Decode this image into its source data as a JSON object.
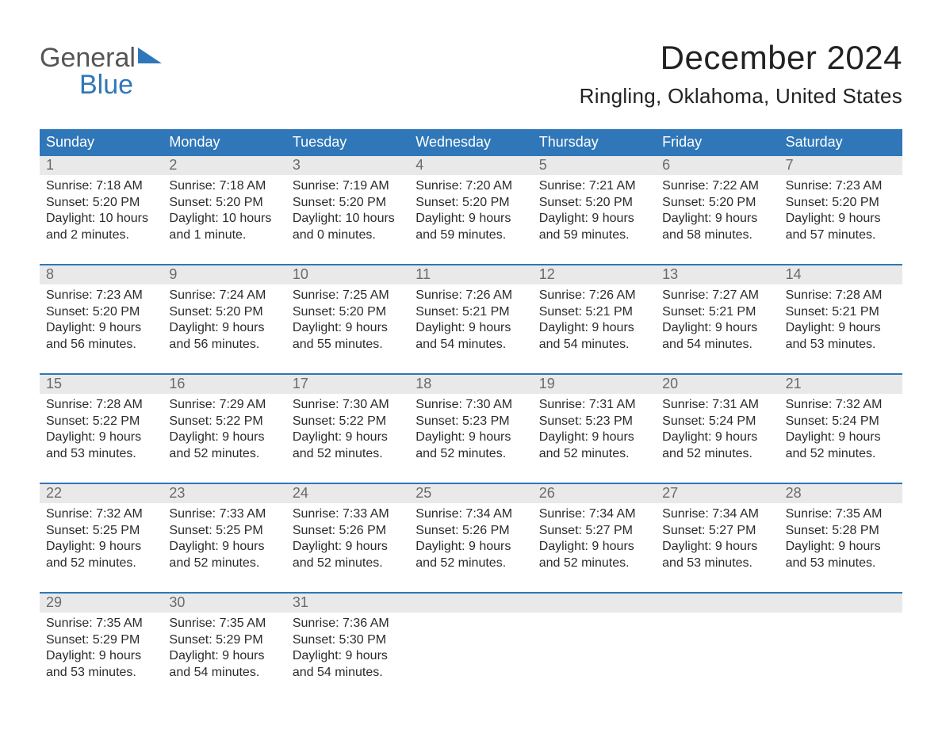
{
  "logo": {
    "word1": "General",
    "word2": "Blue"
  },
  "title": "December 2024",
  "location": "Ringling, Oklahoma, United States",
  "colors": {
    "header_blue": "#2f77b8",
    "daybar_gray": "#e9e9e9",
    "logo_gray": "#555555",
    "logo_blue": "#2f77b8",
    "page_bg": "#ffffff",
    "text_dark": "#2b2b2b",
    "text_muted": "#6a6a6a"
  },
  "weekday_labels": [
    "Sunday",
    "Monday",
    "Tuesday",
    "Wednesday",
    "Thursday",
    "Friday",
    "Saturday"
  ],
  "weeks": [
    [
      {
        "day": 1,
        "sunrise": "7:18 AM",
        "sunset": "5:20 PM",
        "daylight1": "Daylight: 10 hours",
        "daylight2": "and 2 minutes."
      },
      {
        "day": 2,
        "sunrise": "7:18 AM",
        "sunset": "5:20 PM",
        "daylight1": "Daylight: 10 hours",
        "daylight2": "and 1 minute."
      },
      {
        "day": 3,
        "sunrise": "7:19 AM",
        "sunset": "5:20 PM",
        "daylight1": "Daylight: 10 hours",
        "daylight2": "and 0 minutes."
      },
      {
        "day": 4,
        "sunrise": "7:20 AM",
        "sunset": "5:20 PM",
        "daylight1": "Daylight: 9 hours",
        "daylight2": "and 59 minutes."
      },
      {
        "day": 5,
        "sunrise": "7:21 AM",
        "sunset": "5:20 PM",
        "daylight1": "Daylight: 9 hours",
        "daylight2": "and 59 minutes."
      },
      {
        "day": 6,
        "sunrise": "7:22 AM",
        "sunset": "5:20 PM",
        "daylight1": "Daylight: 9 hours",
        "daylight2": "and 58 minutes."
      },
      {
        "day": 7,
        "sunrise": "7:23 AM",
        "sunset": "5:20 PM",
        "daylight1": "Daylight: 9 hours",
        "daylight2": "and 57 minutes."
      }
    ],
    [
      {
        "day": 8,
        "sunrise": "7:23 AM",
        "sunset": "5:20 PM",
        "daylight1": "Daylight: 9 hours",
        "daylight2": "and 56 minutes."
      },
      {
        "day": 9,
        "sunrise": "7:24 AM",
        "sunset": "5:20 PM",
        "daylight1": "Daylight: 9 hours",
        "daylight2": "and 56 minutes."
      },
      {
        "day": 10,
        "sunrise": "7:25 AM",
        "sunset": "5:20 PM",
        "daylight1": "Daylight: 9 hours",
        "daylight2": "and 55 minutes."
      },
      {
        "day": 11,
        "sunrise": "7:26 AM",
        "sunset": "5:21 PM",
        "daylight1": "Daylight: 9 hours",
        "daylight2": "and 54 minutes."
      },
      {
        "day": 12,
        "sunrise": "7:26 AM",
        "sunset": "5:21 PM",
        "daylight1": "Daylight: 9 hours",
        "daylight2": "and 54 minutes."
      },
      {
        "day": 13,
        "sunrise": "7:27 AM",
        "sunset": "5:21 PM",
        "daylight1": "Daylight: 9 hours",
        "daylight2": "and 54 minutes."
      },
      {
        "day": 14,
        "sunrise": "7:28 AM",
        "sunset": "5:21 PM",
        "daylight1": "Daylight: 9 hours",
        "daylight2": "and 53 minutes."
      }
    ],
    [
      {
        "day": 15,
        "sunrise": "7:28 AM",
        "sunset": "5:22 PM",
        "daylight1": "Daylight: 9 hours",
        "daylight2": "and 53 minutes."
      },
      {
        "day": 16,
        "sunrise": "7:29 AM",
        "sunset": "5:22 PM",
        "daylight1": "Daylight: 9 hours",
        "daylight2": "and 52 minutes."
      },
      {
        "day": 17,
        "sunrise": "7:30 AM",
        "sunset": "5:22 PM",
        "daylight1": "Daylight: 9 hours",
        "daylight2": "and 52 minutes."
      },
      {
        "day": 18,
        "sunrise": "7:30 AM",
        "sunset": "5:23 PM",
        "daylight1": "Daylight: 9 hours",
        "daylight2": "and 52 minutes."
      },
      {
        "day": 19,
        "sunrise": "7:31 AM",
        "sunset": "5:23 PM",
        "daylight1": "Daylight: 9 hours",
        "daylight2": "and 52 minutes."
      },
      {
        "day": 20,
        "sunrise": "7:31 AM",
        "sunset": "5:24 PM",
        "daylight1": "Daylight: 9 hours",
        "daylight2": "and 52 minutes."
      },
      {
        "day": 21,
        "sunrise": "7:32 AM",
        "sunset": "5:24 PM",
        "daylight1": "Daylight: 9 hours",
        "daylight2": "and 52 minutes."
      }
    ],
    [
      {
        "day": 22,
        "sunrise": "7:32 AM",
        "sunset": "5:25 PM",
        "daylight1": "Daylight: 9 hours",
        "daylight2": "and 52 minutes."
      },
      {
        "day": 23,
        "sunrise": "7:33 AM",
        "sunset": "5:25 PM",
        "daylight1": "Daylight: 9 hours",
        "daylight2": "and 52 minutes."
      },
      {
        "day": 24,
        "sunrise": "7:33 AM",
        "sunset": "5:26 PM",
        "daylight1": "Daylight: 9 hours",
        "daylight2": "and 52 minutes."
      },
      {
        "day": 25,
        "sunrise": "7:34 AM",
        "sunset": "5:26 PM",
        "daylight1": "Daylight: 9 hours",
        "daylight2": "and 52 minutes."
      },
      {
        "day": 26,
        "sunrise": "7:34 AM",
        "sunset": "5:27 PM",
        "daylight1": "Daylight: 9 hours",
        "daylight2": "and 52 minutes."
      },
      {
        "day": 27,
        "sunrise": "7:34 AM",
        "sunset": "5:27 PM",
        "daylight1": "Daylight: 9 hours",
        "daylight2": "and 53 minutes."
      },
      {
        "day": 28,
        "sunrise": "7:35 AM",
        "sunset": "5:28 PM",
        "daylight1": "Daylight: 9 hours",
        "daylight2": "and 53 minutes."
      }
    ],
    [
      {
        "day": 29,
        "sunrise": "7:35 AM",
        "sunset": "5:29 PM",
        "daylight1": "Daylight: 9 hours",
        "daylight2": "and 53 minutes."
      },
      {
        "day": 30,
        "sunrise": "7:35 AM",
        "sunset": "5:29 PM",
        "daylight1": "Daylight: 9 hours",
        "daylight2": "and 54 minutes."
      },
      {
        "day": 31,
        "sunrise": "7:36 AM",
        "sunset": "5:30 PM",
        "daylight1": "Daylight: 9 hours",
        "daylight2": "and 54 minutes."
      },
      null,
      null,
      null,
      null
    ]
  ],
  "labels": {
    "sunrise_prefix": "Sunrise: ",
    "sunset_prefix": "Sunset: "
  }
}
